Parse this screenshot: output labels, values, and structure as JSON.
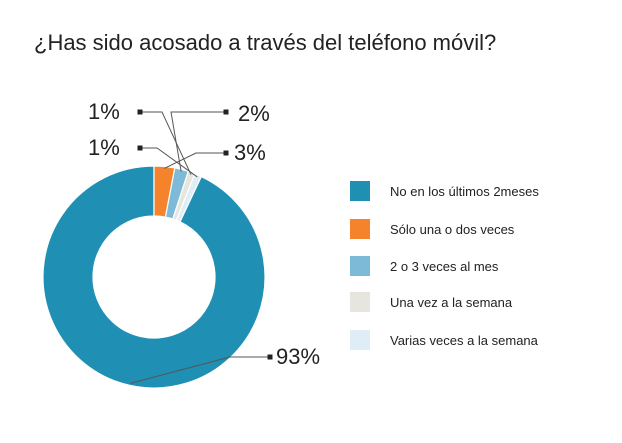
{
  "chart_data": {
    "type": "pie",
    "title": "¿Has sido acosado a través del teléfono móvil?",
    "donut": true,
    "legend_position": "right",
    "categories": [
      "No en los últimos 2meses",
      "Sólo una o dos veces",
      "2 o 3 veces al mes",
      "Una vez a la semana",
      "Varias veces a la semana"
    ],
    "values": [
      93,
      3,
      2,
      1,
      1
    ],
    "data_labels": [
      "93%",
      "3%",
      "2%",
      "1%",
      "1%"
    ],
    "colors": [
      "#1f8fb3",
      "#f5832b",
      "#7cbad7",
      "#e6e6de",
      "#dfedf7"
    ]
  }
}
